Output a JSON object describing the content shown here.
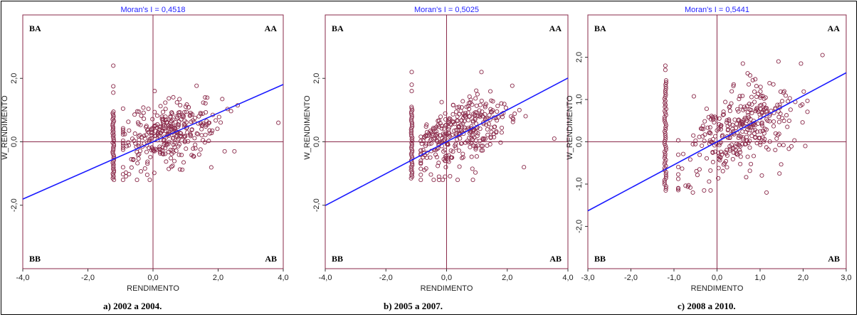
{
  "chart_data": [
    {
      "type": "scatter",
      "title": "Moran's I = 0,4518",
      "xlabel": "RENDIMENTO",
      "ylabel": "W_RENDIMENTO",
      "caption": "a) 2002 a 2004.",
      "xlim": [
        -4,
        4
      ],
      "ylim": [
        -4,
        4
      ],
      "xticks": [
        -4,
        -2,
        0,
        2,
        4
      ],
      "xtick_labels": [
        "-4,0",
        "-2,0",
        "0,0",
        "2,0",
        "4,0"
      ],
      "yticks": [
        -2,
        0,
        2
      ],
      "ytick_labels": [
        "-2,0",
        "0,0",
        "2,0"
      ],
      "quadrants": {
        "tl": "BA",
        "tr": "AA",
        "bl": "BB",
        "br": "AB"
      },
      "slope": 0.4518,
      "cluster": {
        "cx": 0.45,
        "cy": 0.25,
        "sx": 0.75,
        "sy": 0.55,
        "r": 0.45,
        "n": 330
      },
      "stack": {
        "x": -1.22,
        "ymin": -1.2,
        "ymax": 0.95,
        "n": 45
      },
      "extra": [
        [
          -1.22,
          2.4
        ],
        [
          -1.22,
          1.75
        ],
        [
          -1.22,
          1.55
        ],
        [
          3.85,
          0.6
        ],
        [
          0.05,
          1.6
        ],
        [
          2.6,
          1.15
        ],
        [
          1.6,
          1.4
        ],
        [
          2.2,
          -0.3
        ],
        [
          2.5,
          -0.3
        ],
        [
          -0.1,
          -1.2
        ]
      ]
    },
    {
      "type": "scatter",
      "title": "Moran's I = 0,5025",
      "xlabel": "RENDIMENTO",
      "ylabel": "W_RENDIMENTO",
      "caption": "b) 2005 a 2007.",
      "xlim": [
        -4,
        4
      ],
      "ylim": [
        -4,
        4
      ],
      "xticks": [
        -4,
        -2,
        0,
        2,
        4
      ],
      "xtick_labels": [
        "-4,0",
        "-2,0",
        "0,0",
        "2,0",
        "4,0"
      ],
      "yticks": [
        -2,
        0,
        2
      ],
      "ytick_labels": [
        "-2,0",
        "0,0",
        "2,0"
      ],
      "quadrants": {
        "tl": "BA",
        "tr": "AA",
        "bl": "BB",
        "br": "AB"
      },
      "slope": 0.5025,
      "cluster": {
        "cx": 0.45,
        "cy": 0.25,
        "sx": 0.75,
        "sy": 0.55,
        "r": 0.5,
        "n": 330
      },
      "stack": {
        "x": -1.15,
        "ymin": -1.15,
        "ymax": 1.1,
        "n": 45
      },
      "extra": [
        [
          -1.15,
          2.2
        ],
        [
          -1.15,
          1.8
        ],
        [
          -1.15,
          1.6
        ],
        [
          3.55,
          0.1
        ],
        [
          1.15,
          2.2
        ],
        [
          2.55,
          -0.8
        ],
        [
          2.4,
          1.0
        ],
        [
          -0.25,
          -1.1
        ],
        [
          -0.05,
          -1.1
        ],
        [
          0.85,
          -0.85
        ]
      ]
    },
    {
      "type": "scatter",
      "title": "Moran's I = 0,5441",
      "xlabel": "RENDIMENTO",
      "ylabel": "W_RENDIMENTO",
      "caption": "c) 2008 a 2010.",
      "xlim": [
        -3,
        3
      ],
      "ylim": [
        -3,
        3
      ],
      "xticks": [
        -3,
        -2,
        -1,
        0,
        1,
        2,
        3
      ],
      "xtick_labels": [
        "-3,0",
        "-2,0",
        "-1,0",
        "0,0",
        "1,0",
        "2,0",
        "3,0"
      ],
      "yticks": [
        -2,
        -1,
        0,
        1,
        2
      ],
      "ytick_labels": [
        "-2,0",
        "-1,0",
        "0,0",
        "1,0",
        "2,0"
      ],
      "quadrants": {
        "tl": "BA",
        "tr": "AA",
        "bl": "BB",
        "br": "AB"
      },
      "slope": 0.5441,
      "cluster": {
        "cx": 0.5,
        "cy": 0.25,
        "sx": 0.65,
        "sy": 0.55,
        "r": 0.5,
        "n": 340
      },
      "stack": {
        "x": -1.2,
        "ymin": -1.15,
        "ymax": 1.45,
        "n": 55
      },
      "extra": [
        [
          -1.2,
          1.8
        ],
        [
          -1.2,
          1.7
        ],
        [
          2.45,
          2.05
        ],
        [
          1.95,
          1.85
        ],
        [
          1.45,
          -0.75
        ],
        [
          2.05,
          -0.1
        ],
        [
          1.15,
          -1.2
        ],
        [
          -0.3,
          -1.15
        ],
        [
          -0.15,
          -1.15
        ],
        [
          0.6,
          1.85
        ]
      ]
    }
  ]
}
